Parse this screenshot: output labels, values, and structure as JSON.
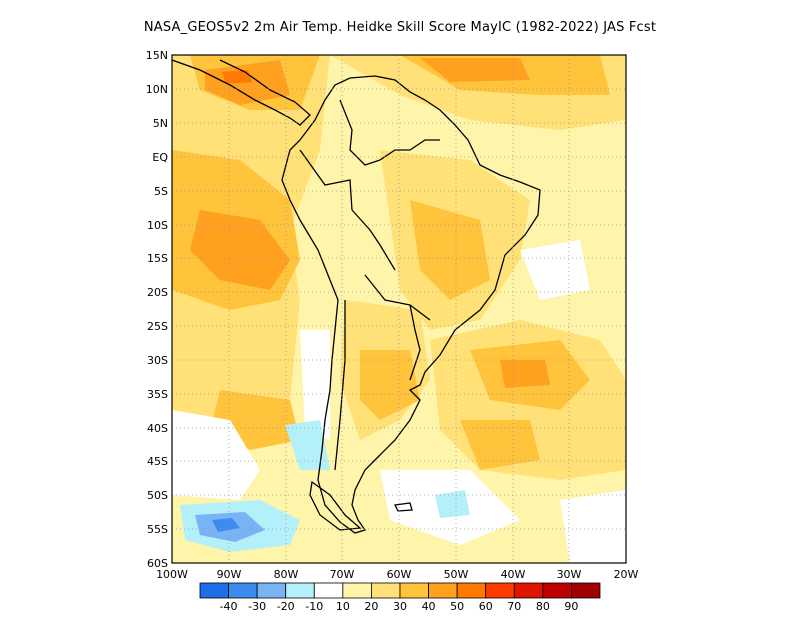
{
  "title": "NASA_GEOS5v2  2m Air Temp. Heidke Skill Score MayIC (1982-2022) JAS Fcst",
  "map": {
    "region": "South America",
    "lon_range": [
      -100,
      -20
    ],
    "lat_range": [
      -60,
      15
    ],
    "lat_labels": [
      "15N",
      "10N",
      "5N",
      "EQ",
      "5S",
      "10S",
      "15S",
      "20S",
      "25S",
      "30S",
      "35S",
      "40S",
      "45S",
      "50S",
      "55S",
      "60S"
    ],
    "lon_labels": [
      "100W",
      "90W",
      "80W",
      "70W",
      "60W",
      "50W",
      "40W",
      "30W",
      "20W"
    ],
    "gridlines": "dotted"
  },
  "colorbar": {
    "labels": [
      "-40",
      "-30",
      "-20",
      "-10",
      "10",
      "20",
      "30",
      "40",
      "50",
      "60",
      "70",
      "80",
      "90"
    ],
    "colors": [
      "#1e6ee8",
      "#3c8cf0",
      "#78b4f5",
      "#b4f0fa",
      "#ffffff",
      "#fff5aa",
      "#ffe178",
      "#ffc33c",
      "#ffa01e",
      "#ff7800",
      "#ff3c00",
      "#e11400",
      "#be0000",
      "#a00000"
    ]
  }
}
